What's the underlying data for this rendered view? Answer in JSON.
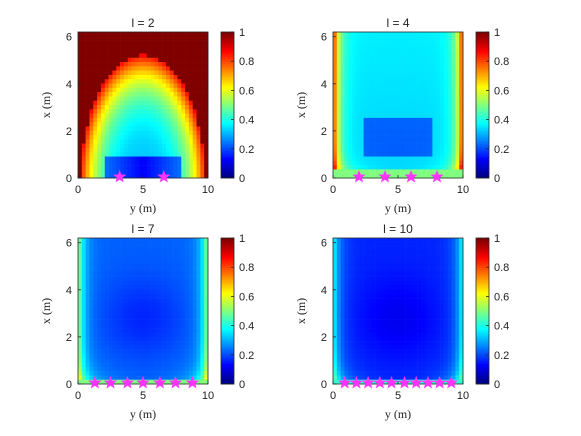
{
  "chart_data": [
    {
      "type": "heatmap",
      "title": "l = 2",
      "xlabel": "y (m)",
      "ylabel": "x (m)",
      "xlim": [
        0,
        10
      ],
      "ylim": [
        0,
        6.2
      ],
      "xticks": [
        "0",
        "5",
        "10"
      ],
      "yticks": [
        "0",
        "2",
        "4",
        "6"
      ],
      "colorbar": {
        "range": [
          0,
          1
        ],
        "ticks": [
          "0",
          "0.2",
          "0.4",
          "0.6",
          "0.8",
          "1"
        ]
      },
      "colormap": "jet",
      "markers": {
        "shape": "star",
        "color": "#ff33ff",
        "y": [
          3.2,
          6.6
        ],
        "x": [
          0.05,
          0.05
        ]
      }
    },
    {
      "type": "heatmap",
      "title": "l = 4",
      "xlabel": "y (m)",
      "ylabel": "x (m)",
      "xlim": [
        0,
        10
      ],
      "ylim": [
        0,
        6.2
      ],
      "xticks": [
        "0",
        "5",
        "10"
      ],
      "yticks": [
        "0",
        "2",
        "4",
        "6"
      ],
      "colorbar": {
        "range": [
          0,
          1
        ],
        "ticks": [
          "0",
          "0.2",
          "0.4",
          "0.6",
          "0.8",
          "1"
        ]
      },
      "colormap": "jet",
      "markers": {
        "shape": "star",
        "color": "#ff33ff",
        "y": [
          2.0,
          4.0,
          6.0,
          8.0
        ],
        "x": [
          0.05,
          0.05,
          0.05,
          0.05
        ]
      }
    },
    {
      "type": "heatmap",
      "title": "l = 7",
      "xlabel": "y (m)",
      "ylabel": "x (m)",
      "xlim": [
        0,
        10
      ],
      "ylim": [
        0,
        6.2
      ],
      "xticks": [
        "0",
        "5",
        "10"
      ],
      "yticks": [
        "0",
        "2",
        "4",
        "6"
      ],
      "colorbar": {
        "range": [
          0,
          1
        ],
        "ticks": [
          "0",
          "0.2",
          "0.4",
          "0.6",
          "0.8",
          "1"
        ]
      },
      "colormap": "jet",
      "markers": {
        "shape": "star",
        "color": "#ff33ff",
        "y": [
          1.3,
          2.5,
          3.8,
          5.0,
          6.3,
          7.5,
          8.8
        ],
        "x": [
          0.05,
          0.05,
          0.05,
          0.05,
          0.05,
          0.05,
          0.05
        ]
      }
    },
    {
      "type": "heatmap",
      "title": "l = 10",
      "xlabel": "y (m)",
      "ylabel": "x (m)",
      "xlim": [
        0,
        10
      ],
      "ylim": [
        0,
        6.2
      ],
      "xticks": [
        "0",
        "5",
        "10"
      ],
      "yticks": [
        "0",
        "2",
        "4",
        "6"
      ],
      "colorbar": {
        "range": [
          0,
          1
        ],
        "ticks": [
          "0",
          "0.2",
          "0.4",
          "0.6",
          "0.8",
          "1"
        ]
      },
      "colormap": "jet",
      "markers": {
        "shape": "star",
        "color": "#ff33ff",
        "y": [
          0.9,
          1.8,
          2.7,
          3.6,
          4.5,
          5.5,
          6.4,
          7.3,
          8.2,
          9.1
        ],
        "x": [
          0.05,
          0.05,
          0.05,
          0.05,
          0.05,
          0.05,
          0.05,
          0.05,
          0.05,
          0.05
        ]
      }
    }
  ]
}
